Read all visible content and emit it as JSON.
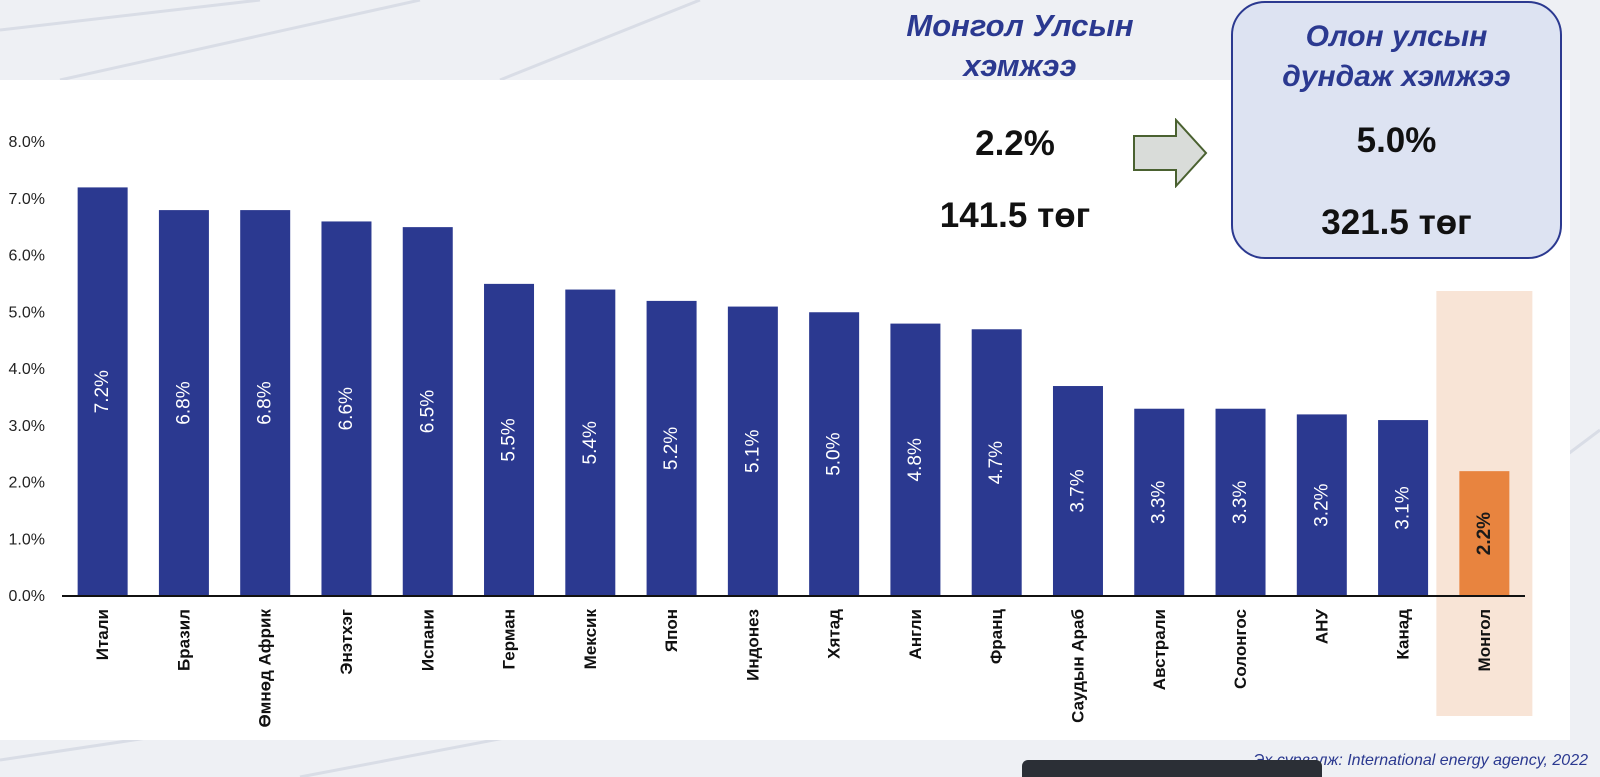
{
  "mongolia_panel": {
    "heading_line1": "Монгол Улсын",
    "heading_line2": "хэмжээ",
    "percent": "2.2%",
    "price": "141.5 төг"
  },
  "international_panel": {
    "heading_line1": "Олон улсын",
    "heading_line2": "дундаж хэмжээ",
    "percent": "5.0%",
    "price": "321.5 төг"
  },
  "source_note": "Эх сурвалж: International energy agency, 2022",
  "colors": {
    "bar": "#2b3990",
    "highlight_bar": "#e8843f",
    "highlight_band": "#f8e4d6",
    "heading": "#2b3990",
    "arrow_fill": "#d9dcd9",
    "arrow_stroke": "#4a6130"
  },
  "icons": {
    "arrow": "right-arrow-icon"
  },
  "chart_data": {
    "type": "bar",
    "categories": [
      "Итали",
      "Бразил",
      "Өмнөд Африк",
      "Энэтхэг",
      "Испани",
      "Герман",
      "Мексик",
      "Япон",
      "Индонез",
      "Хятад",
      "Англи",
      "Франц",
      "Саудын Араб",
      "Австрали",
      "Солонгос",
      "АНУ",
      "Канад",
      "Монгол"
    ],
    "values": [
      7.2,
      6.8,
      6.8,
      6.6,
      6.5,
      5.5,
      5.4,
      5.2,
      5.1,
      5.0,
      4.8,
      4.7,
      3.7,
      3.3,
      3.3,
      3.2,
      3.1,
      2.2
    ],
    "data_labels": [
      "7.2%",
      "6.8%",
      "6.8%",
      "6.6%",
      "6.5%",
      "5.5%",
      "5.4%",
      "5.2%",
      "5.1%",
      "5.0%",
      "4.8%",
      "4.7%",
      "3.7%",
      "3.3%",
      "3.3%",
      "3.2%",
      "3.1%",
      "2.2%"
    ],
    "highlight_category": "Монгол",
    "y_ticks": [
      "0.0%",
      "1.0%",
      "2.0%",
      "3.0%",
      "4.0%",
      "5.0%",
      "6.0%",
      "7.0%",
      "8.0%"
    ],
    "ylim": [
      0,
      8
    ],
    "title": "",
    "xlabel": "",
    "ylabel": "",
    "grid": false,
    "legend": "none"
  }
}
